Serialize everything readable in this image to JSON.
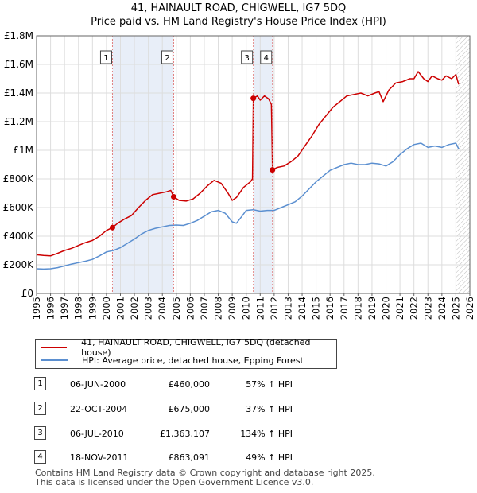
{
  "title": "41, HAINAULT ROAD, CHIGWELL, IG7 5DQ",
  "subtitle": "Price paid vs. HM Land Registry's House Price Index (HPI)",
  "colors": {
    "property": "#cc0000",
    "hpi": "#5b8fd0",
    "shade": "#e8eef8",
    "marker_line": "#e08080"
  },
  "legend": {
    "property_label": "41, HAINAULT ROAD, CHIGWELL, IG7 5DQ (detached house)",
    "hpi_label": "HPI: Average price, detached house, Epping Forest"
  },
  "transactions": [
    {
      "num": "1",
      "date": "06-JUN-2000",
      "price": "£460,000",
      "hpi": "57% ↑ HPI"
    },
    {
      "num": "2",
      "date": "22-OCT-2004",
      "price": "£675,000",
      "hpi": "37% ↑ HPI"
    },
    {
      "num": "3",
      "date": "06-JUL-2010",
      "price": "£1,363,107",
      "hpi": "134% ↑ HPI"
    },
    {
      "num": "4",
      "date": "18-NOV-2011",
      "price": "£863,091",
      "hpi": "49% ↑ HPI"
    }
  ],
  "footer": {
    "line1": "Contains HM Land Registry data © Crown copyright and database right 2025.",
    "line2": "This data is licensed under the Open Government Licence v3.0."
  },
  "chart_data": {
    "type": "line",
    "title": "41, HAINAULT ROAD, CHIGWELL, IG7 5DQ",
    "subtitle": "Price paid vs. HM Land Registry's House Price Index (HPI)",
    "xlim": [
      1995,
      2026
    ],
    "ylim": [
      0,
      1800000
    ],
    "x_ticks": [
      1995,
      1996,
      1997,
      1998,
      1999,
      2000,
      2001,
      2002,
      2003,
      2004,
      2005,
      2006,
      2007,
      2008,
      2009,
      2010,
      2011,
      2012,
      2013,
      2014,
      2015,
      2016,
      2017,
      2018,
      2019,
      2020,
      2021,
      2022,
      2023,
      2024,
      2025,
      2026
    ],
    "y_ticks": [
      {
        "value": 0,
        "label": "£0"
      },
      {
        "value": 200000,
        "label": "£200K"
      },
      {
        "value": 400000,
        "label": "£400K"
      },
      {
        "value": 600000,
        "label": "£600K"
      },
      {
        "value": 800000,
        "label": "£800K"
      },
      {
        "value": 1000000,
        "label": "£1M"
      },
      {
        "value": 1200000,
        "label": "£1.2M"
      },
      {
        "value": 1400000,
        "label": "£1.4M"
      },
      {
        "value": 1600000,
        "label": "£1.6M"
      },
      {
        "value": 1800000,
        "label": "£1.8M"
      }
    ],
    "shaded_ranges": [
      [
        2000.43,
        2004.81
      ],
      [
        2010.51,
        2011.88
      ]
    ],
    "hatched_from": 2025.0,
    "sales": [
      {
        "label": "1",
        "x": 2000.43,
        "y": 460000
      },
      {
        "label": "2",
        "x": 2004.81,
        "y": 675000
      },
      {
        "label": "3",
        "x": 2010.51,
        "y": 1363107
      },
      {
        "label": "4",
        "x": 2011.88,
        "y": 863091
      }
    ],
    "series": [
      {
        "name": "41, HAINAULT ROAD, CHIGWELL, IG7 5DQ (detached house)",
        "x": [
          1995.0,
          1995.5,
          1996.0,
          1996.5,
          1997.0,
          1997.5,
          1998.0,
          1998.5,
          1999.0,
          1999.5,
          2000.0,
          2000.43,
          2000.8,
          2001.3,
          2001.8,
          2002.3,
          2002.8,
          2003.3,
          2003.8,
          2004.3,
          2004.6,
          2004.81,
          2005.2,
          2005.7,
          2006.2,
          2006.7,
          2007.2,
          2007.7,
          2008.2,
          2008.7,
          2009.0,
          2009.3,
          2009.8,
          2010.3,
          2010.45,
          2010.51,
          2010.8,
          2011.0,
          2011.3,
          2011.6,
          2011.8,
          2011.88,
          2012.2,
          2012.7,
          2013.2,
          2013.7,
          2014.2,
          2014.7,
          2015.2,
          2015.7,
          2016.2,
          2016.7,
          2017.2,
          2017.7,
          2018.2,
          2018.7,
          2019.2,
          2019.5,
          2019.8,
          2020.2,
          2020.7,
          2021.2,
          2021.7,
          2022.0,
          2022.3,
          2022.7,
          2023.0,
          2023.3,
          2023.7,
          2024.0,
          2024.3,
          2024.7,
          2025.0,
          2025.2
        ],
        "values": [
          270000,
          265000,
          262000,
          280000,
          300000,
          315000,
          335000,
          355000,
          370000,
          400000,
          440000,
          460000,
          490000,
          520000,
          545000,
          600000,
          650000,
          690000,
          700000,
          710000,
          720000,
          675000,
          650000,
          645000,
          660000,
          700000,
          750000,
          790000,
          770000,
          700000,
          650000,
          670000,
          740000,
          780000,
          800000,
          1363107,
          1380000,
          1350000,
          1380000,
          1360000,
          1320000,
          863091,
          880000,
          890000,
          920000,
          960000,
          1030000,
          1100000,
          1180000,
          1240000,
          1300000,
          1340000,
          1380000,
          1390000,
          1400000,
          1380000,
          1400000,
          1410000,
          1340000,
          1420000,
          1470000,
          1480000,
          1500000,
          1500000,
          1550000,
          1500000,
          1480000,
          1520000,
          1500000,
          1490000,
          1520000,
          1500000,
          1530000,
          1460000
        ]
      },
      {
        "name": "HPI: Average price, detached house, Epping Forest",
        "x": [
          1995.0,
          1995.5,
          1996.0,
          1996.5,
          1997.0,
          1997.5,
          1998.0,
          1998.5,
          1999.0,
          1999.5,
          2000.0,
          2000.5,
          2001.0,
          2001.5,
          2002.0,
          2002.5,
          2003.0,
          2003.5,
          2004.0,
          2004.5,
          2005.0,
          2005.5,
          2006.0,
          2006.5,
          2007.0,
          2007.5,
          2008.0,
          2008.5,
          2009.0,
          2009.3,
          2009.7,
          2010.0,
          2010.5,
          2011.0,
          2011.5,
          2012.0,
          2012.5,
          2013.0,
          2013.5,
          2014.0,
          2014.5,
          2015.0,
          2015.5,
          2016.0,
          2016.5,
          2017.0,
          2017.5,
          2018.0,
          2018.5,
          2019.0,
          2019.5,
          2020.0,
          2020.5,
          2021.0,
          2021.5,
          2022.0,
          2022.5,
          2023.0,
          2023.5,
          2024.0,
          2024.5,
          2025.0,
          2025.2
        ],
        "values": [
          172000,
          170000,
          172000,
          180000,
          192000,
          205000,
          215000,
          225000,
          238000,
          262000,
          290000,
          300000,
          320000,
          350000,
          380000,
          415000,
          440000,
          455000,
          465000,
          475000,
          478000,
          475000,
          490000,
          510000,
          540000,
          570000,
          580000,
          560000,
          500000,
          490000,
          540000,
          580000,
          585000,
          575000,
          580000,
          580000,
          600000,
          620000,
          640000,
          680000,
          730000,
          780000,
          820000,
          860000,
          880000,
          900000,
          910000,
          900000,
          900000,
          910000,
          905000,
          890000,
          920000,
          970000,
          1010000,
          1040000,
          1050000,
          1020000,
          1030000,
          1020000,
          1040000,
          1050000,
          1010000
        ]
      }
    ]
  }
}
